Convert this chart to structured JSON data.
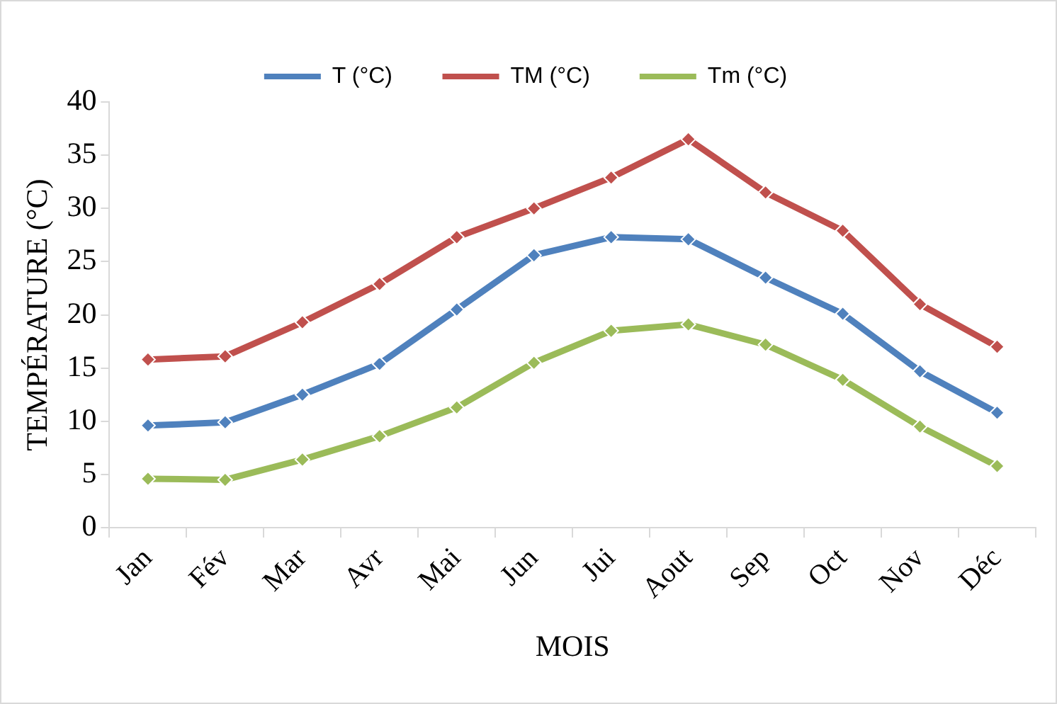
{
  "chart_data": {
    "type": "line",
    "xlabel": "MOIS",
    "ylabel": "TEMPÉRATURE (°C)",
    "categories": [
      "Jan",
      "Fév",
      "Mar",
      "Avr",
      "Mai",
      "Jun",
      "Jui",
      "Aout",
      "Sep",
      "Oct",
      "Nov",
      "Déc"
    ],
    "series": [
      {
        "name": "T (°C)",
        "color": "#4f81bd",
        "values": [
          9.6,
          9.9,
          12.5,
          15.4,
          20.5,
          25.6,
          27.3,
          27.1,
          23.5,
          20.1,
          14.7,
          10.8
        ]
      },
      {
        "name": "TM (°C)",
        "color": "#c0504d",
        "values": [
          15.8,
          16.1,
          19.3,
          22.9,
          27.3,
          30.0,
          32.9,
          36.5,
          31.5,
          27.9,
          21.0,
          17.0
        ]
      },
      {
        "name": "Tm (°C)",
        "color": "#9bbb59",
        "values": [
          4.6,
          4.5,
          6.4,
          8.6,
          11.3,
          15.5,
          18.5,
          19.1,
          17.2,
          13.9,
          9.5,
          5.8
        ]
      }
    ],
    "ylim": [
      0,
      40
    ],
    "yticks": [
      0,
      5,
      10,
      15,
      20,
      25,
      30,
      35,
      40
    ],
    "grid": false,
    "legend": "top",
    "marker": "diamond",
    "line_style": "solid"
  }
}
